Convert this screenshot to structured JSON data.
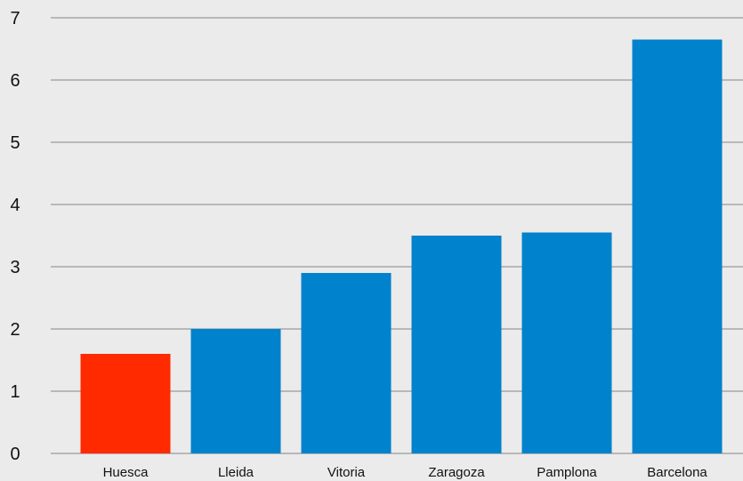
{
  "chart_data": {
    "type": "bar",
    "title": "",
    "xlabel": "",
    "ylabel": "",
    "categories": [
      "Huesca",
      "Lleida",
      "Vitoria",
      "Zaragoza",
      "Pamplona",
      "Barcelona"
    ],
    "values": [
      1.6,
      2.0,
      2.9,
      3.5,
      3.55,
      6.65
    ],
    "ylim": [
      0,
      7
    ],
    "yticks": [
      0,
      1,
      2,
      3,
      4,
      5,
      6,
      7
    ],
    "grid": true,
    "legend": "none",
    "colors": {
      "default_bar": "#0082cc",
      "highlight_bar": "#ff2a00",
      "gridline": "#9a9a9a",
      "background": "#ebebeb"
    },
    "highlight_categories": [
      "Huesca"
    ]
  }
}
